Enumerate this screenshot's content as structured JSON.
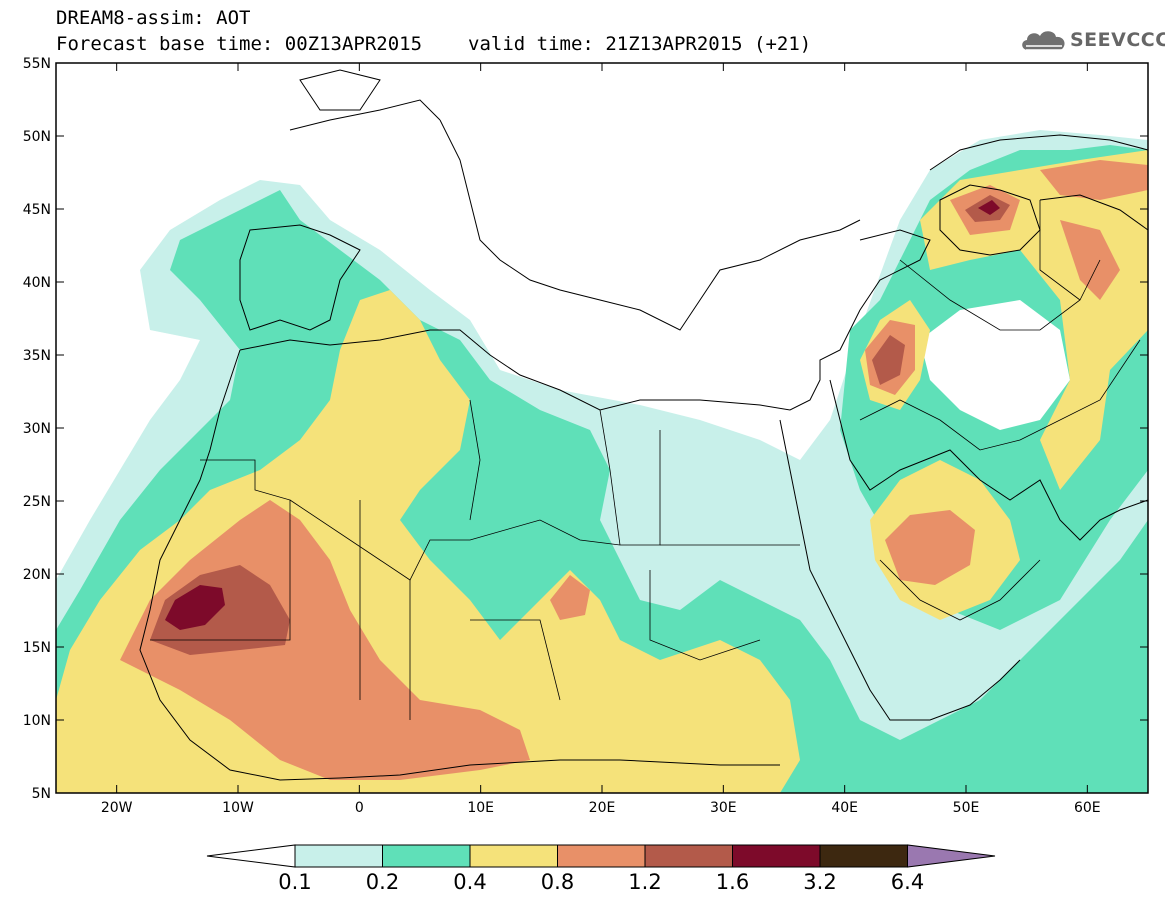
{
  "title": "DREAM8-assim: AOT",
  "forecast_base_label": "Forecast base time: 00Z13APR2015",
  "valid_time_label": "valid time: 21Z13APR2015 (+21)",
  "logo_text": "SEEVCCC",
  "map": {
    "lon_range": [
      -25,
      65
    ],
    "lat_range": [
      5,
      55
    ],
    "lat_ticks": [
      "55N",
      "50N",
      "45N",
      "40N",
      "35N",
      "30N",
      "25N",
      "20N",
      "15N",
      "10N",
      "5N"
    ],
    "lon_ticks": [
      "20W",
      "10W",
      "0",
      "10E",
      "20E",
      "30E",
      "40E",
      "50E",
      "60E"
    ]
  },
  "colorbar": {
    "levels": [
      "0.1",
      "0.2",
      "0.4",
      "0.8",
      "1.2",
      "1.6",
      "3.2",
      "6.4"
    ],
    "colors": [
      "#c8f0ea",
      "#5fe0b8",
      "#f5e27a",
      "#e89068",
      "#b35a4a",
      "#7d0a2a",
      "#3d2810",
      "#9a78b0"
    ]
  }
}
